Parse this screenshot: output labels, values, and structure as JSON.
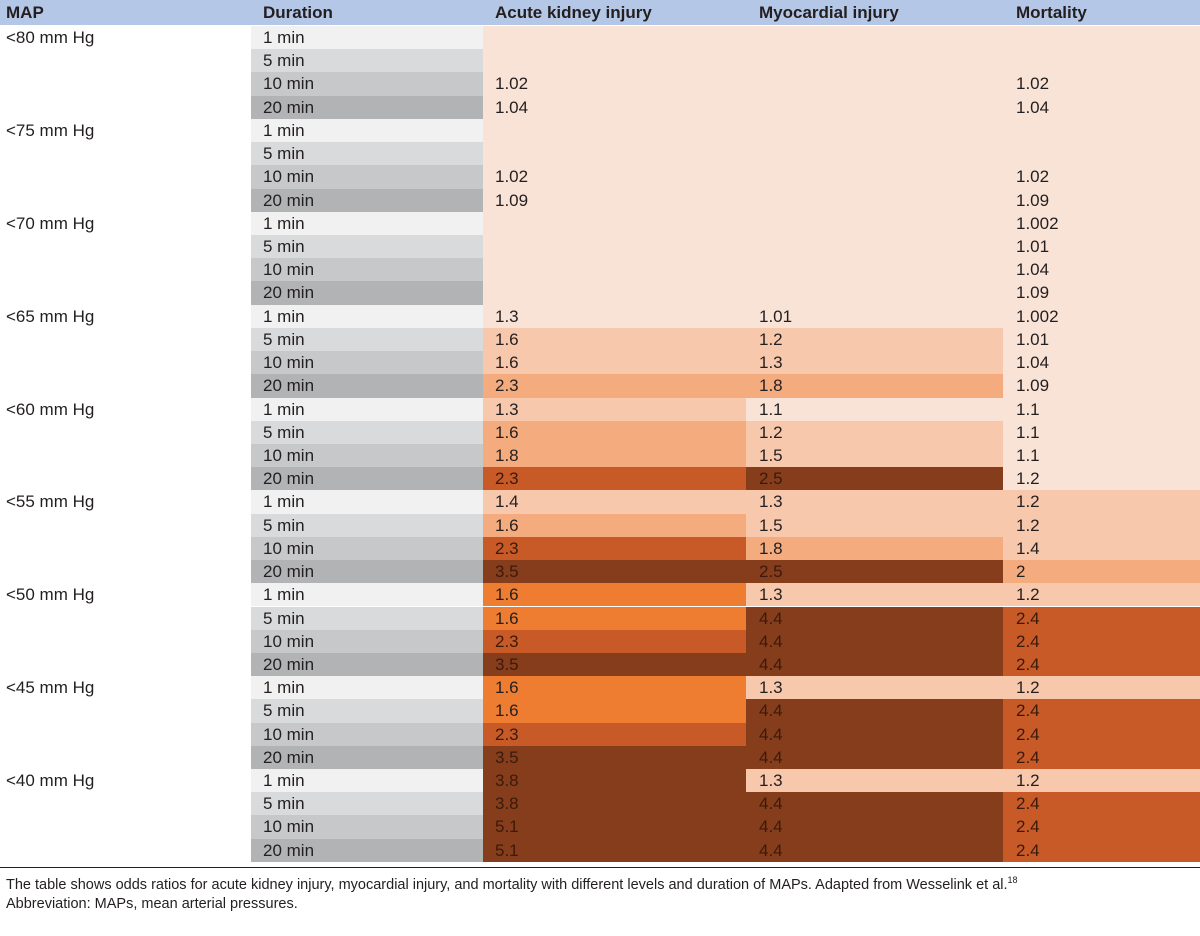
{
  "table": {
    "headers": [
      "MAP",
      "Duration",
      "Acute kidney injury",
      "Myocardial injury",
      "Mortality"
    ],
    "rows": [
      {
        "map": "<80 mm Hg",
        "durations": [
          "1 min",
          "5 min",
          "10 min",
          "20 min"
        ],
        "aki": [
          "",
          "",
          "1.02",
          "1.04"
        ],
        "myo": [
          "",
          "",
          "",
          ""
        ],
        "mort": [
          "",
          "",
          "1.02",
          "1.04"
        ]
      },
      {
        "map": "<75 mm Hg",
        "durations": [
          "1 min",
          "5 min",
          "10 min",
          "20 min"
        ],
        "aki": [
          "",
          "",
          "1.02",
          "1.09"
        ],
        "myo": [
          "",
          "",
          "",
          ""
        ],
        "mort": [
          "",
          "",
          "1.02",
          "1.09"
        ]
      },
      {
        "map": "<70 mm Hg",
        "durations": [
          "1 min",
          "5 min",
          "10 min",
          "20 min"
        ],
        "aki": [
          "",
          "",
          "",
          ""
        ],
        "myo": [
          "",
          "",
          "",
          ""
        ],
        "mort": [
          "1.002",
          "1.01",
          "1.04",
          "1.09"
        ]
      },
      {
        "map": "<65 mm Hg",
        "durations": [
          "1 min",
          "5 min",
          "10 min",
          "20 min"
        ],
        "aki": [
          "1.3",
          "1.6",
          "1.6",
          "2.3"
        ],
        "myo": [
          "1.01",
          "1.2",
          "1.3",
          "1.8"
        ],
        "mort": [
          "1.002",
          "1.01",
          "1.04",
          "1.09"
        ]
      },
      {
        "map": "<60 mm Hg",
        "durations": [
          "1 min",
          "5 min",
          "10 min",
          "20 min"
        ],
        "aki": [
          "1.3",
          "1.6",
          "1.8",
          "2.3"
        ],
        "myo": [
          "1.1",
          "1.2",
          "1.5",
          "2.5"
        ],
        "mort": [
          "1.1",
          "1.1",
          "1.1",
          "1.2"
        ]
      },
      {
        "map": "<55 mm Hg",
        "durations": [
          "1 min",
          "5 min",
          "10 min",
          "20 min"
        ],
        "aki": [
          "1.4",
          "1.6",
          "2.3",
          "3.5"
        ],
        "myo": [
          "1.3",
          "1.5",
          "1.8",
          "2.5"
        ],
        "mort": [
          "1.2",
          "1.2",
          "1.4",
          "2"
        ]
      },
      {
        "map": "<50 mm Hg",
        "durations": [
          "1 min",
          "5 min",
          "10 min",
          "20 min"
        ],
        "aki": [
          "1.6",
          "1.6",
          "2.3",
          "3.5"
        ],
        "myo": [
          "1.3",
          "4.4",
          "4.4",
          "4.4"
        ],
        "mort": [
          "1.2",
          "2.4",
          "2.4",
          "2.4"
        ]
      },
      {
        "map": "<45 mm Hg",
        "durations": [
          "1 min",
          "5 min",
          "10 min",
          "20 min"
        ],
        "aki": [
          "1.6",
          "1.6",
          "2.3",
          "3.5"
        ],
        "myo": [
          "1.3",
          "4.4",
          "4.4",
          "4.4"
        ],
        "mort": [
          "1.2",
          "2.4",
          "2.4",
          "2.4"
        ]
      },
      {
        "map": "<40 mm Hg",
        "durations": [
          "1 min",
          "5 min",
          "10 min",
          "20 min"
        ],
        "aki": [
          "3.8",
          "3.8",
          "5.1",
          "5.1"
        ],
        "myo": [
          "1.3",
          "4.4",
          "4.4",
          "4.4"
        ],
        "mort": [
          "1.2",
          "2.4",
          "2.4",
          "2.4"
        ]
      }
    ]
  },
  "colors": {
    "header": "#b5c7e6",
    "duration_shades": [
      "#f1f1f2",
      "#d9dadb",
      "#c7c8ca",
      "#b2b3b5"
    ],
    "levels": [
      "#f9e2d6",
      "#f7c8ac",
      "#f4ab7e",
      "#ee7c31",
      "#c85a27",
      "#863d1c"
    ]
  },
  "footnote": {
    "text": "The table shows odds ratios for acute kidney injury, myocardial injury, and mortality with different levels and duration of MAPs. Adapted from Wesselink et al.",
    "ref": "18",
    "abbreviation": "Abbreviation: MAPs, mean arterial pressures."
  }
}
